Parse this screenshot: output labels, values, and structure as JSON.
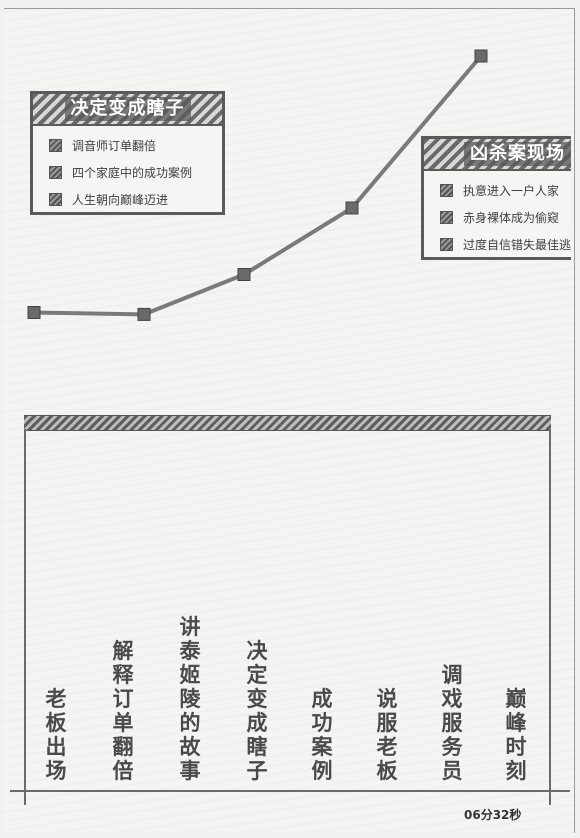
{
  "callouts": {
    "decide": {
      "title": "决定变成瞎子",
      "items": [
        "调音师订单翻倍",
        "四个家庭中的成功案例",
        "人生朝向巅峰迈进"
      ]
    },
    "murder": {
      "title": "凶杀案现场",
      "items": [
        "执意进入一户人家",
        "赤身裸体成为偷窥",
        "过度自信错失最佳逃"
      ]
    }
  },
  "chart_data": {
    "type": "line",
    "title": "",
    "xlabel": "",
    "ylabel": "",
    "categories": [
      "老板出场",
      "解释订单翻倍",
      "讲泰姬陵的故事",
      "决定变成瞎子",
      "成功案例",
      "说服老板",
      "调戏服务员",
      "巅峰时刻"
    ],
    "x": [
      1,
      2,
      3,
      4,
      5
    ],
    "values": [
      1.0,
      0.8,
      5.0,
      12.0,
      28.0
    ],
    "grid": false,
    "legend": "none"
  },
  "stages": [
    "老板出场",
    "解释订单翻倍",
    "讲泰姬陵的故事",
    "决定变成瞎子",
    "成功案例",
    "说服老板",
    "调戏服务员",
    "巅峰时刻"
  ],
  "timestamp": "06分32秒",
  "colors": {
    "line": "#7a7a7a",
    "marker": "#6a6a6a",
    "frame": "#5a5a5a"
  },
  "icons": {
    "bullet": "hatched-square-icon"
  }
}
